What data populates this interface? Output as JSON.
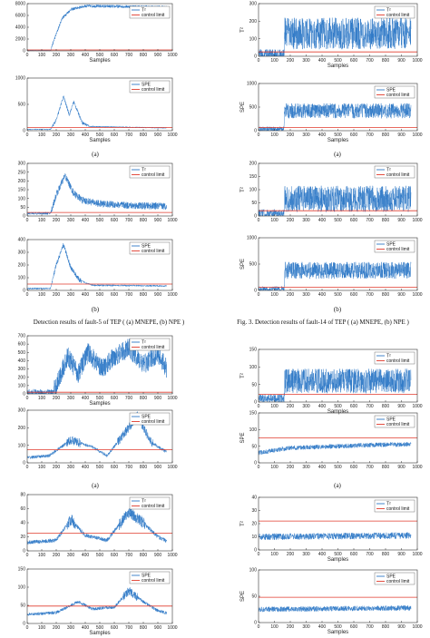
{
  "colors": {
    "series": "#2e78c6",
    "limit": "#e03a2c",
    "axis": "#333333"
  },
  "captions": {
    "left_a1": "(a)",
    "left_b1": "(b)",
    "left_fig_title": "Detection results of fault-5 of TEP ( (a) MNEPE, (b) NPE )",
    "right_a1": "(a)",
    "right_b1": "(b)",
    "right_fig_title": "Fig. 3. Detection results of fault-14 of TEP ( (a) MNEPE, (b) NPE )",
    "left_a2": "(a)",
    "right_a2": "(a)"
  },
  "chart_data": [
    {
      "id": "L1",
      "type": "line",
      "column": "left",
      "xlabel": "Samples",
      "ylabel": "",
      "ylim": [
        0,
        8000
      ],
      "xlim": [
        0,
        1000
      ],
      "yticks": [
        0,
        2000,
        4000,
        6000,
        8000
      ],
      "xticks": [
        0,
        100,
        200,
        300,
        400,
        500,
        600,
        700,
        800,
        900,
        1000
      ],
      "limit": 150,
      "legend": [
        "T²",
        "control limit"
      ],
      "profile": [
        [
          0,
          20
        ],
        [
          160,
          20
        ],
        [
          180,
          1500
        ],
        [
          240,
          5500
        ],
        [
          300,
          7000
        ],
        [
          400,
          7600
        ],
        [
          1000,
          7400
        ]
      ],
      "noise": 250
    },
    {
      "id": "L2",
      "type": "line",
      "column": "left",
      "xlabel": "Samples",
      "ylabel": "",
      "ylim": [
        0,
        1000
      ],
      "xlim": [
        0,
        1000
      ],
      "yticks": [
        0,
        500,
        1000
      ],
      "xticks": [
        0,
        100,
        200,
        300,
        400,
        500,
        600,
        700,
        800,
        900,
        1000
      ],
      "limit": 60,
      "legend": [
        "SPE",
        "control limit"
      ],
      "profile": [
        [
          0,
          25
        ],
        [
          160,
          25
        ],
        [
          200,
          200
        ],
        [
          250,
          650
        ],
        [
          290,
          300
        ],
        [
          320,
          550
        ],
        [
          380,
          150
        ],
        [
          430,
          80
        ],
        [
          1000,
          50
        ]
      ],
      "noise": 30
    },
    {
      "id": "L3",
      "type": "line",
      "column": "left",
      "xlabel": "",
      "ylabel": "",
      "ylim": [
        0,
        300
      ],
      "xlim": [
        0,
        1000
      ],
      "yticks": [
        0,
        50,
        100,
        150,
        200,
        250,
        300
      ],
      "xticks": [
        0,
        100,
        200,
        300,
        400,
        500,
        600,
        700,
        800,
        900,
        1000
      ],
      "limit": 20,
      "legend": [
        "T²",
        "control limit"
      ],
      "profile": [
        [
          0,
          15
        ],
        [
          160,
          15
        ],
        [
          200,
          120
        ],
        [
          260,
          230
        ],
        [
          320,
          130
        ],
        [
          380,
          90
        ],
        [
          500,
          70
        ],
        [
          700,
          60
        ],
        [
          1000,
          55
        ]
      ],
      "noise": 20
    },
    {
      "id": "L4",
      "type": "line",
      "column": "left",
      "xlabel": "",
      "ylabel": "",
      "ylim": [
        0,
        400
      ],
      "xlim": [
        0,
        1000
      ],
      "yticks": [
        0,
        100,
        200,
        300,
        400
      ],
      "xticks": [
        0,
        100,
        200,
        300,
        400,
        500,
        600,
        700,
        800,
        900,
        1000
      ],
      "limit": 50,
      "legend": [
        "SPE",
        "control limit"
      ],
      "profile": [
        [
          0,
          15
        ],
        [
          160,
          15
        ],
        [
          200,
          200
        ],
        [
          250,
          360
        ],
        [
          300,
          180
        ],
        [
          360,
          80
        ],
        [
          450,
          40
        ],
        [
          1000,
          35
        ]
      ],
      "noise": 18
    },
    {
      "id": "L5",
      "type": "line",
      "column": "left",
      "xlabel": "Samples",
      "ylabel": "",
      "ylim": [
        0,
        700
      ],
      "xlim": [
        0,
        1000
      ],
      "yticks": [
        0,
        100,
        200,
        300,
        400,
        500,
        600,
        700
      ],
      "xticks": [
        0,
        100,
        200,
        300,
        400,
        500,
        600,
        700,
        800,
        900,
        1000
      ],
      "limit": 20,
      "legend": [
        "T²",
        "control limit"
      ],
      "profile": [
        [
          0,
          15
        ],
        [
          180,
          15
        ],
        [
          200,
          100
        ],
        [
          280,
          450
        ],
        [
          350,
          250
        ],
        [
          420,
          500
        ],
        [
          520,
          300
        ],
        [
          600,
          450
        ],
        [
          700,
          550
        ],
        [
          800,
          350
        ],
        [
          900,
          480
        ],
        [
          1000,
          200
        ]
      ],
      "noise": 120
    },
    {
      "id": "L6",
      "type": "line",
      "column": "left",
      "xlabel": "",
      "ylabel": "",
      "ylim": [
        0,
        300
      ],
      "xlim": [
        0,
        1000
      ],
      "yticks": [
        0,
        100,
        200,
        300
      ],
      "xticks": [
        0,
        100,
        200,
        300,
        400,
        500,
        600,
        700,
        800,
        900,
        1000
      ],
      "limit": 75,
      "legend": [
        "SPE",
        "control limit"
      ],
      "profile": [
        [
          0,
          30
        ],
        [
          150,
          40
        ],
        [
          300,
          130
        ],
        [
          450,
          90
        ],
        [
          550,
          40
        ],
        [
          700,
          200
        ],
        [
          760,
          270
        ],
        [
          850,
          120
        ],
        [
          1000,
          40
        ]
      ],
      "noise": 25
    },
    {
      "id": "L7",
      "type": "line",
      "column": "left",
      "xlabel": "",
      "ylabel": "",
      "ylim": [
        0,
        80
      ],
      "xlim": [
        0,
        1000
      ],
      "yticks": [
        0,
        20,
        40,
        60,
        80
      ],
      "xticks": [
        0,
        100,
        200,
        300,
        400,
        500,
        600,
        700,
        800,
        900,
        1000
      ],
      "limit": 25,
      "legend": [
        "T²",
        "control limit"
      ],
      "profile": [
        [
          0,
          12
        ],
        [
          200,
          15
        ],
        [
          300,
          45
        ],
        [
          400,
          22
        ],
        [
          550,
          15
        ],
        [
          700,
          55
        ],
        [
          800,
          40
        ],
        [
          900,
          20
        ],
        [
          1000,
          10
        ]
      ],
      "noise": 8
    },
    {
      "id": "L8",
      "type": "line",
      "column": "left",
      "xlabel": "Samples",
      "ylabel": "",
      "ylim": [
        0,
        150
      ],
      "xlim": [
        0,
        1000
      ],
      "yticks": [
        0,
        50,
        100,
        150
      ],
      "xticks": [
        0,
        100,
        200,
        300,
        400,
        500,
        600,
        700,
        800,
        900,
        1000
      ],
      "limit": 48,
      "legend": [
        "SPE",
        "control limit"
      ],
      "profile": [
        [
          0,
          25
        ],
        [
          200,
          30
        ],
        [
          350,
          60
        ],
        [
          450,
          40
        ],
        [
          600,
          45
        ],
        [
          700,
          90
        ],
        [
          800,
          60
        ],
        [
          900,
          35
        ],
        [
          1000,
          25
        ]
      ],
      "noise": 12
    },
    {
      "id": "R1",
      "type": "line",
      "column": "right",
      "xlabel": "Samples",
      "ylabel": "T²",
      "ylim": [
        0,
        300
      ],
      "xlim": [
        0,
        1000
      ],
      "yticks": [
        0,
        100,
        200,
        300
      ],
      "xticks": [
        0,
        100,
        200,
        300,
        400,
        500,
        600,
        700,
        800,
        900,
        1000
      ],
      "limit": 25,
      "legend": [
        "T²",
        "control limit"
      ],
      "profile": [
        [
          0,
          8
        ],
        [
          160,
          8
        ],
        [
          165,
          130
        ],
        [
          1000,
          130
        ]
      ],
      "noise": 90
    },
    {
      "id": "R2",
      "type": "line",
      "column": "right",
      "xlabel": "Samples",
      "ylabel": "SPE",
      "ylim": [
        0,
        1000
      ],
      "xlim": [
        0,
        1000
      ],
      "yticks": [
        0,
        500,
        1000
      ],
      "xticks": [
        0,
        100,
        200,
        300,
        400,
        500,
        600,
        700,
        800,
        900,
        1000
      ],
      "limit": 70,
      "legend": [
        "SPE",
        "control limit"
      ],
      "profile": [
        [
          0,
          30
        ],
        [
          160,
          30
        ],
        [
          165,
          420
        ],
        [
          1000,
          420
        ]
      ],
      "noise": 160
    },
    {
      "id": "R3",
      "type": "line",
      "column": "right",
      "xlabel": "",
      "ylabel": "T²",
      "ylim": [
        0,
        200
      ],
      "xlim": [
        0,
        1000
      ],
      "yticks": [
        0,
        50,
        100,
        150,
        200
      ],
      "xticks": [
        0,
        100,
        200,
        300,
        400,
        500,
        600,
        700,
        800,
        900,
        1000
      ],
      "limit": 20,
      "legend": [
        "T²",
        "control limit"
      ],
      "profile": [
        [
          0,
          8
        ],
        [
          160,
          8
        ],
        [
          165,
          65
        ],
        [
          1000,
          65
        ]
      ],
      "noise": 50
    },
    {
      "id": "R4",
      "type": "line",
      "column": "right",
      "xlabel": "",
      "ylabel": "SPE",
      "ylim": [
        0,
        1000
      ],
      "xlim": [
        0,
        1000
      ],
      "yticks": [
        0,
        500,
        1000
      ],
      "xticks": [
        0,
        100,
        200,
        300,
        400,
        500,
        600,
        700,
        800,
        900,
        1000
      ],
      "limit": 60,
      "legend": [
        "SPE",
        "control limit"
      ],
      "profile": [
        [
          0,
          25
        ],
        [
          160,
          25
        ],
        [
          165,
          380
        ],
        [
          1000,
          380
        ]
      ],
      "noise": 160
    },
    {
      "id": "R5",
      "type": "line",
      "column": "right",
      "xlabel": "Samples",
      "ylabel": "T²",
      "ylim": [
        0,
        150
      ],
      "xlim": [
        0,
        1000
      ],
      "yticks": [
        0,
        50,
        100,
        150
      ],
      "xticks": [
        0,
        100,
        200,
        300,
        400,
        500,
        600,
        700,
        800,
        900,
        1000
      ],
      "limit": 22,
      "legend": [
        "T²",
        "control limit"
      ],
      "profile": [
        [
          0,
          10
        ],
        [
          160,
          10
        ],
        [
          165,
          60
        ],
        [
          1000,
          60
        ]
      ],
      "noise": 35
    },
    {
      "id": "R6",
      "type": "line",
      "column": "right",
      "xlabel": "",
      "ylabel": "SPE",
      "ylim": [
        0,
        150
      ],
      "xlim": [
        0,
        1000
      ],
      "yticks": [
        0,
        50,
        100,
        150
      ],
      "xticks": [
        0,
        100,
        200,
        300,
        400,
        500,
        600,
        700,
        800,
        900,
        1000
      ],
      "limit": 75,
      "legend": [
        "SPE",
        "control limit"
      ],
      "profile": [
        [
          0,
          30
        ],
        [
          200,
          45
        ],
        [
          500,
          50
        ],
        [
          800,
          55
        ],
        [
          1000,
          55
        ]
      ],
      "noise": 20
    },
    {
      "id": "R7",
      "type": "line",
      "column": "right",
      "xlabel": "Samples",
      "ylabel": "T²",
      "ylim": [
        0,
        40
      ],
      "xlim": [
        0,
        1000
      ],
      "yticks": [
        0,
        10,
        20,
        30,
        40
      ],
      "xticks": [
        0,
        100,
        200,
        300,
        400,
        500,
        600,
        700,
        800,
        900,
        1000
      ],
      "limit": 22,
      "legend": [
        "T²",
        "control limit"
      ],
      "profile": [
        [
          0,
          10
        ],
        [
          1000,
          11
        ]
      ],
      "noise": 7
    },
    {
      "id": "R8",
      "type": "line",
      "column": "right",
      "xlabel": "Samples",
      "ylabel": "SPE",
      "ylim": [
        0,
        100
      ],
      "xlim": [
        0,
        1000
      ],
      "yticks": [
        0,
        50,
        100
      ],
      "xticks": [
        0,
        100,
        200,
        300,
        400,
        500,
        600,
        700,
        800,
        900,
        1000
      ],
      "limit": 48,
      "legend": [
        "SPE",
        "control limit"
      ],
      "profile": [
        [
          0,
          25
        ],
        [
          1000,
          28
        ]
      ],
      "noise": 14
    }
  ]
}
